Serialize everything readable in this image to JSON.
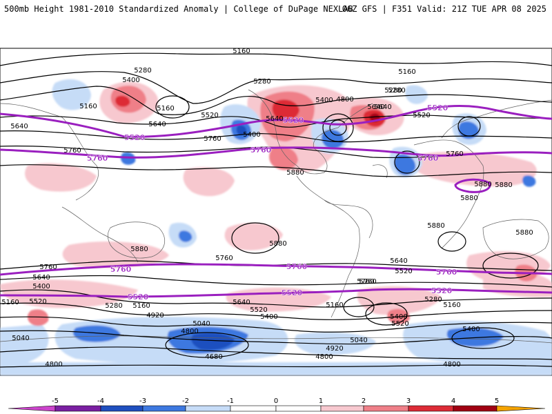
{
  "header": {
    "left": "500mb Height 1981-2010 Standardized Anomaly | College of DuPage NEXLAB",
    "right": "06Z GFS | F351 Valid: 21Z TUE APR 08 2025"
  },
  "colors": {
    "neg5": "#cc44cc",
    "neg4": "#7a1fa2",
    "neg3": "#1f4fbf",
    "neg2": "#3d78e0",
    "neg1": "#c6dcf7",
    "zero": "#ffffff",
    "pos1": "#f7c8cf",
    "pos2": "#ef7f88",
    "pos3": "#dd2b36",
    "pos4": "#a10012",
    "pos5": "#f4a300",
    "contour": "#000000",
    "highlight": "#9a1fbf",
    "coast": "#606060"
  },
  "colorbar": {
    "ticks": [
      "-5",
      "-4",
      "-3",
      "-2",
      "-1",
      "0",
      "1",
      "2",
      "3",
      "4",
      "5"
    ]
  },
  "contour_labels": [
    {
      "t": "5160"
    },
    {
      "t": "5280"
    },
    {
      "t": "5400"
    },
    {
      "t": "5280"
    },
    {
      "t": "5160"
    },
    {
      "t": "5520"
    },
    {
      "t": "5640"
    },
    {
      "t": "5400"
    },
    {
      "t": "5280"
    },
    {
      "t": "5160"
    },
    {
      "t": "5640"
    },
    {
      "t": "5760"
    },
    {
      "t": "5400"
    },
    {
      "t": "5880"
    },
    {
      "t": "5640"
    },
    {
      "t": "5760"
    },
    {
      "t": "5160"
    },
    {
      "t": "5520"
    },
    {
      "t": "5760"
    },
    {
      "t": "5880"
    },
    {
      "t": "5880"
    },
    {
      "t": "5880"
    },
    {
      "t": "5880"
    },
    {
      "t": "5880"
    },
    {
      "t": "5880"
    },
    {
      "t": "5760"
    },
    {
      "t": "5640"
    },
    {
      "t": "5400"
    },
    {
      "t": "5760"
    },
    {
      "t": "5640"
    },
    {
      "t": "5520"
    },
    {
      "t": "5280"
    },
    {
      "t": "5160"
    },
    {
      "t": "5520"
    },
    {
      "t": "5160"
    },
    {
      "t": "5040"
    },
    {
      "t": "4920"
    },
    {
      "t": "5040"
    },
    {
      "t": "4800"
    },
    {
      "t": "4680"
    },
    {
      "t": "4800"
    },
    {
      "t": "5640"
    },
    {
      "t": "5520"
    },
    {
      "t": "5400"
    },
    {
      "t": "5280"
    },
    {
      "t": "5160"
    },
    {
      "t": "5400"
    },
    {
      "t": "5760"
    },
    {
      "t": "4920"
    },
    {
      "t": "5040"
    },
    {
      "t": "4800"
    },
    {
      "t": "5640"
    },
    {
      "t": "5520"
    },
    {
      "t": "5280"
    },
    {
      "t": "5160"
    },
    {
      "t": "4800"
    },
    {
      "t": "4800"
    },
    {
      "t": "5400"
    },
    {
      "t": "5640"
    },
    {
      "t": "5760"
    },
    {
      "t": "5880"
    }
  ],
  "highlight_labels": [
    {
      "t": "5520"
    },
    {
      "t": "5520"
    },
    {
      "t": "5520"
    },
    {
      "t": "5760"
    },
    {
      "t": "5760"
    },
    {
      "t": "5760"
    },
    {
      "t": "5760"
    },
    {
      "t": "5760"
    },
    {
      "t": "5520"
    },
    {
      "t": "5520"
    },
    {
      "t": "5520"
    },
    {
      "t": "5760"
    }
  ]
}
